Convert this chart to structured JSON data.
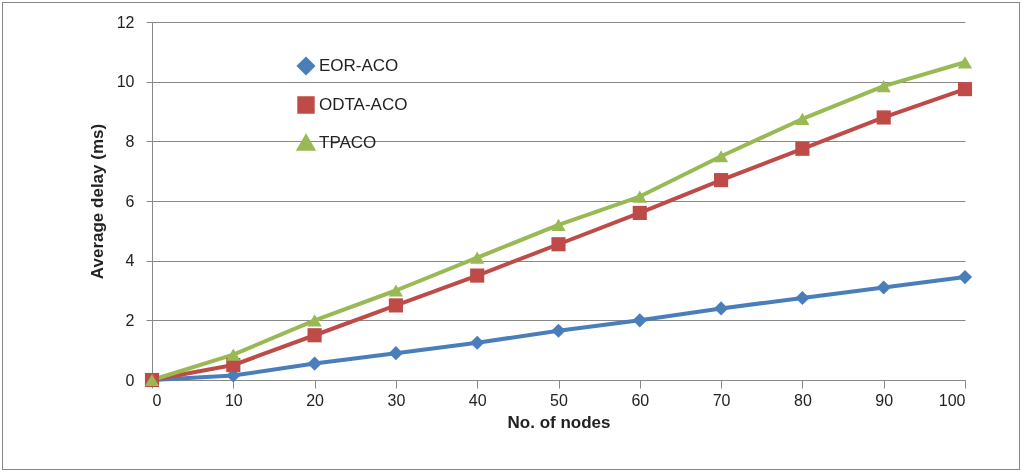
{
  "chart_data": {
    "type": "line",
    "xlabel": "No. of nodes",
    "ylabel": "Average delay (ms)",
    "x": [
      0,
      10,
      20,
      30,
      40,
      50,
      60,
      70,
      80,
      90,
      100
    ],
    "xlim": [
      0,
      100
    ],
    "xticks": [
      0,
      10,
      20,
      30,
      40,
      50,
      60,
      70,
      80,
      90,
      100
    ],
    "ylim": [
      0,
      12
    ],
    "yticks": [
      0,
      2,
      4,
      6,
      8,
      10,
      12
    ],
    "grid": "y",
    "legend": "top left",
    "series": [
      {
        "name": "EOR-ACO",
        "color": "#4a7ebb",
        "marker": "diamond",
        "values": [
          0,
          0.15,
          0.55,
          0.9,
          1.25,
          1.65,
          2.0,
          2.4,
          2.75,
          3.1,
          3.45
        ]
      },
      {
        "name": "ODTA-ACO",
        "color": "#be4b48",
        "marker": "square",
        "values": [
          0,
          0.5,
          1.5,
          2.5,
          3.5,
          4.55,
          5.6,
          6.7,
          7.75,
          8.8,
          9.75
        ]
      },
      {
        "name": "TPACO",
        "color": "#98b954",
        "marker": "triangle",
        "values": [
          0,
          0.85,
          2.0,
          3.0,
          4.1,
          5.2,
          6.15,
          7.5,
          8.75,
          9.85,
          10.65
        ]
      }
    ]
  }
}
